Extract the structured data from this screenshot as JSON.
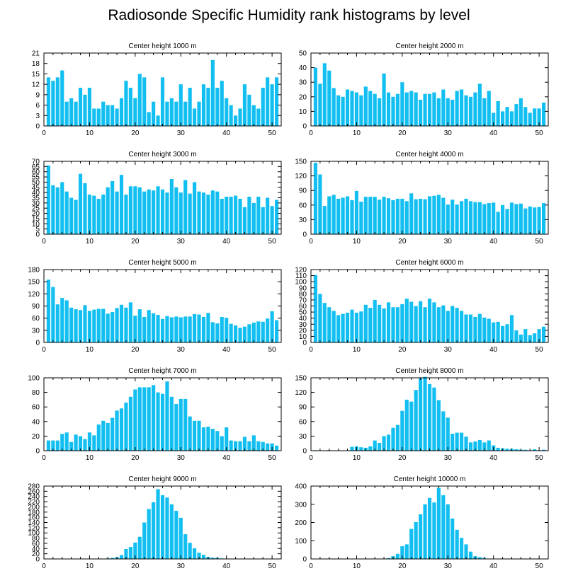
{
  "title": "Radiosonde Specific Humidity rank histograms by level",
  "chart_data": [
    {
      "type": "bar",
      "title": "Center height 1000 m",
      "xlim": [
        0,
        52
      ],
      "ylim": [
        0,
        21
      ],
      "xticks": [
        0,
        10,
        20,
        30,
        40,
        50
      ],
      "yticks": [
        0,
        3,
        6,
        9,
        12,
        15,
        18,
        21
      ],
      "x": [
        1,
        2,
        3,
        4,
        5,
        6,
        7,
        8,
        9,
        10,
        11,
        12,
        13,
        14,
        15,
        16,
        17,
        18,
        19,
        20,
        21,
        22,
        23,
        24,
        25,
        26,
        27,
        28,
        29,
        30,
        31,
        32,
        33,
        34,
        35,
        36,
        37,
        38,
        39,
        40,
        41,
        42,
        43,
        44,
        45,
        46,
        47,
        48,
        49,
        50,
        51
      ],
      "values": [
        14,
        13,
        14,
        16,
        7,
        8,
        7,
        11,
        9,
        11,
        5,
        5,
        7,
        6,
        6,
        5,
        8,
        13,
        11,
        8,
        15,
        14,
        4,
        7,
        3,
        14,
        7,
        8,
        7,
        12,
        7,
        11,
        5,
        7,
        12,
        11,
        19,
        11,
        13,
        8,
        6,
        3,
        5,
        12,
        9,
        6,
        5,
        11,
        14,
        12,
        14
      ]
    },
    {
      "type": "bar",
      "title": "Center height 2000 m",
      "xlim": [
        0,
        52
      ],
      "ylim": [
        0,
        50
      ],
      "xticks": [
        0,
        10,
        20,
        30,
        40,
        50
      ],
      "yticks": [
        0,
        10,
        20,
        30,
        40,
        50
      ],
      "x": [
        1,
        2,
        3,
        4,
        5,
        6,
        7,
        8,
        9,
        10,
        11,
        12,
        13,
        14,
        15,
        16,
        17,
        18,
        19,
        20,
        21,
        22,
        23,
        24,
        25,
        26,
        27,
        28,
        29,
        30,
        31,
        32,
        33,
        34,
        35,
        36,
        37,
        38,
        39,
        40,
        41,
        42,
        43,
        44,
        45,
        46,
        47,
        48,
        49,
        50,
        51
      ],
      "values": [
        40,
        29,
        43,
        38,
        26,
        21,
        20,
        25,
        24,
        23,
        21,
        27,
        24,
        22,
        19,
        36,
        23,
        20,
        22,
        30,
        23,
        24,
        23,
        18,
        22,
        22,
        23,
        19,
        25,
        19,
        18,
        24,
        25,
        21,
        20,
        23,
        29,
        19,
        24,
        9,
        17,
        10,
        13,
        10,
        15,
        19,
        13,
        9,
        12,
        12,
        16
      ]
    },
    {
      "type": "bar",
      "title": "Center height 3000 m",
      "xlim": [
        0,
        52
      ],
      "ylim": [
        0,
        70
      ],
      "xticks": [
        0,
        10,
        20,
        30,
        40,
        50
      ],
      "yticks": [
        0,
        5,
        10,
        15,
        20,
        25,
        30,
        35,
        40,
        45,
        50,
        55,
        60,
        65,
        70
      ],
      "x": [
        1,
        2,
        3,
        4,
        5,
        6,
        7,
        8,
        9,
        10,
        11,
        12,
        13,
        14,
        15,
        16,
        17,
        18,
        19,
        20,
        21,
        22,
        23,
        24,
        25,
        26,
        27,
        28,
        29,
        30,
        31,
        32,
        33,
        34,
        35,
        36,
        37,
        38,
        39,
        40,
        41,
        42,
        43,
        44,
        45,
        46,
        47,
        48,
        49,
        50,
        51
      ],
      "values": [
        66,
        47,
        45,
        50,
        41,
        35,
        33,
        58,
        49,
        38,
        37,
        34,
        38,
        45,
        51,
        41,
        57,
        38,
        46,
        46,
        45,
        41,
        43,
        42,
        46,
        43,
        40,
        53,
        45,
        40,
        52,
        39,
        50,
        41,
        40,
        38,
        42,
        41,
        34,
        36,
        36,
        37,
        34,
        26,
        36,
        30,
        36,
        26,
        35,
        27,
        33
      ]
    },
    {
      "type": "bar",
      "title": "Center height 4000 m",
      "xlim": [
        0,
        52
      ],
      "ylim": [
        0,
        150
      ],
      "xticks": [
        0,
        10,
        20,
        30,
        40,
        50
      ],
      "yticks": [
        0,
        30,
        60,
        90,
        120,
        150
      ],
      "x": [
        1,
        2,
        3,
        4,
        5,
        6,
        7,
        8,
        9,
        10,
        11,
        12,
        13,
        14,
        15,
        16,
        17,
        18,
        19,
        20,
        21,
        22,
        23,
        24,
        25,
        26,
        27,
        28,
        29,
        30,
        31,
        32,
        33,
        34,
        35,
        36,
        37,
        38,
        39,
        40,
        41,
        42,
        43,
        44,
        45,
        46,
        47,
        48,
        49,
        50,
        51
      ],
      "values": [
        147,
        123,
        58,
        78,
        81,
        73,
        75,
        78,
        70,
        89,
        67,
        77,
        77,
        77,
        71,
        77,
        74,
        70,
        73,
        73,
        68,
        84,
        72,
        73,
        72,
        78,
        79,
        81,
        75,
        61,
        71,
        61,
        68,
        73,
        68,
        66,
        66,
        62,
        64,
        65,
        46,
        60,
        52,
        65,
        62,
        63,
        53,
        57,
        55,
        56,
        64
      ]
    },
    {
      "type": "bar",
      "title": "Center height 5000 m",
      "xlim": [
        0,
        52
      ],
      "ylim": [
        0,
        180
      ],
      "xticks": [
        0,
        10,
        20,
        30,
        40,
        50
      ],
      "yticks": [
        0,
        30,
        60,
        90,
        120,
        150,
        180
      ],
      "x": [
        1,
        2,
        3,
        4,
        5,
        6,
        7,
        8,
        9,
        10,
        11,
        12,
        13,
        14,
        15,
        16,
        17,
        18,
        19,
        20,
        21,
        22,
        23,
        24,
        25,
        26,
        27,
        28,
        29,
        30,
        31,
        32,
        33,
        34,
        35,
        36,
        37,
        38,
        39,
        40,
        41,
        42,
        43,
        44,
        45,
        46,
        47,
        48,
        49,
        50,
        51
      ],
      "values": [
        155,
        137,
        94,
        110,
        104,
        86,
        82,
        80,
        92,
        78,
        81,
        83,
        83,
        71,
        75,
        85,
        93,
        86,
        99,
        66,
        82,
        63,
        80,
        72,
        68,
        58,
        65,
        62,
        64,
        62,
        64,
        64,
        70,
        69,
        63,
        73,
        50,
        47,
        63,
        61,
        46,
        42,
        36,
        39,
        45,
        49,
        52,
        51,
        59,
        77,
        55
      ]
    },
    {
      "type": "bar",
      "title": "Center height 6000 m",
      "xlim": [
        0,
        52
      ],
      "ylim": [
        0,
        120
      ],
      "xticks": [
        0,
        10,
        20,
        30,
        40,
        50
      ],
      "yticks": [
        0,
        10,
        20,
        30,
        40,
        50,
        60,
        70,
        80,
        90,
        100,
        110,
        120
      ],
      "x": [
        1,
        2,
        3,
        4,
        5,
        6,
        7,
        8,
        9,
        10,
        11,
        12,
        13,
        14,
        15,
        16,
        17,
        18,
        19,
        20,
        21,
        22,
        23,
        24,
        25,
        26,
        27,
        28,
        29,
        30,
        31,
        32,
        33,
        34,
        35,
        36,
        37,
        38,
        39,
        40,
        41,
        42,
        43,
        44,
        45,
        46,
        47,
        48,
        49,
        50,
        51
      ],
      "values": [
        111,
        80,
        65,
        58,
        52,
        45,
        47,
        49,
        54,
        49,
        51,
        62,
        57,
        70,
        62,
        56,
        66,
        58,
        58,
        63,
        72,
        67,
        60,
        68,
        58,
        72,
        66,
        58,
        61,
        52,
        60,
        57,
        52,
        46,
        46,
        42,
        47,
        41,
        39,
        33,
        34,
        27,
        30,
        45,
        20,
        13,
        22,
        12,
        15,
        22,
        26
      ]
    },
    {
      "type": "bar",
      "title": "Center height 7000 m",
      "xlim": [
        0,
        52
      ],
      "ylim": [
        0,
        100
      ],
      "xticks": [
        0,
        10,
        20,
        30,
        40,
        50
      ],
      "yticks": [
        0,
        20,
        40,
        60,
        80,
        100
      ],
      "x": [
        1,
        2,
        3,
        4,
        5,
        6,
        7,
        8,
        9,
        10,
        11,
        12,
        13,
        14,
        15,
        16,
        17,
        18,
        19,
        20,
        21,
        22,
        23,
        24,
        25,
        26,
        27,
        28,
        29,
        30,
        31,
        32,
        33,
        34,
        35,
        36,
        37,
        38,
        39,
        40,
        41,
        42,
        43,
        44,
        45,
        46,
        47,
        48,
        49,
        50,
        51
      ],
      "values": [
        14,
        14,
        14,
        23,
        25,
        12,
        22,
        20,
        16,
        25,
        21,
        36,
        41,
        38,
        45,
        55,
        58,
        66,
        74,
        84,
        87,
        87,
        87,
        90,
        80,
        78,
        95,
        74,
        64,
        71,
        71,
        47,
        41,
        41,
        32,
        33,
        30,
        27,
        20,
        32,
        14,
        13,
        13,
        19,
        13,
        21,
        13,
        12,
        10,
        10,
        7
      ]
    },
    {
      "type": "bar",
      "title": "Center height 8000 m",
      "xlim": [
        0,
        52
      ],
      "ylim": [
        0,
        150
      ],
      "xticks": [
        0,
        10,
        20,
        30,
        40,
        50
      ],
      "yticks": [
        0,
        30,
        60,
        90,
        120,
        150
      ],
      "x": [
        1,
        2,
        3,
        4,
        5,
        6,
        7,
        8,
        9,
        10,
        11,
        12,
        13,
        14,
        15,
        16,
        17,
        18,
        19,
        20,
        21,
        22,
        23,
        24,
        25,
        26,
        27,
        28,
        29,
        30,
        31,
        32,
        33,
        34,
        35,
        36,
        37,
        38,
        39,
        40,
        41,
        42,
        43,
        44,
        45,
        46,
        47,
        48,
        49,
        50,
        51
      ],
      "values": [
        1,
        0,
        0,
        1,
        0,
        0,
        0,
        0,
        8,
        9,
        7,
        6,
        9,
        21,
        16,
        30,
        33,
        47,
        53,
        82,
        105,
        101,
        125,
        149,
        152,
        137,
        130,
        104,
        81,
        68,
        35,
        37,
        37,
        29,
        17,
        19,
        22,
        17,
        21,
        11,
        6,
        5,
        4,
        4,
        3,
        2,
        2,
        1,
        3,
        1,
        2
      ]
    },
    {
      "type": "bar",
      "title": "Center height 9000 m",
      "xlim": [
        0,
        52
      ],
      "ylim": [
        0,
        280
      ],
      "xticks": [
        0,
        10,
        20,
        30,
        40,
        50
      ],
      "yticks": [
        0,
        20,
        40,
        60,
        80,
        100,
        120,
        140,
        160,
        180,
        200,
        220,
        240,
        260,
        280
      ],
      "x": [
        1,
        2,
        3,
        4,
        5,
        6,
        7,
        8,
        9,
        10,
        11,
        12,
        13,
        14,
        15,
        16,
        17,
        18,
        19,
        20,
        21,
        22,
        23,
        24,
        25,
        26,
        27,
        28,
        29,
        30,
        31,
        32,
        33,
        34,
        35,
        36,
        37,
        38,
        39,
        40,
        41,
        42,
        43,
        44,
        45,
        46,
        47,
        48,
        49,
        50,
        51
      ],
      "values": [
        0,
        0,
        0,
        0,
        0,
        0,
        0,
        0,
        0,
        0,
        0,
        0,
        1,
        2,
        4,
        7,
        15,
        38,
        46,
        63,
        85,
        140,
        192,
        218,
        268,
        245,
        236,
        210,
        185,
        158,
        95,
        62,
        41,
        24,
        16,
        8,
        5,
        4,
        2,
        1,
        1,
        0,
        0,
        0,
        0,
        0,
        0,
        0,
        0,
        0,
        0
      ]
    },
    {
      "type": "bar",
      "title": "Center height 10000 m",
      "xlim": [
        0,
        52
      ],
      "ylim": [
        0,
        400
      ],
      "xticks": [
        0,
        10,
        20,
        30,
        40,
        50
      ],
      "yticks": [
        0,
        100,
        200,
        300,
        400
      ],
      "x": [
        1,
        2,
        3,
        4,
        5,
        6,
        7,
        8,
        9,
        10,
        11,
        12,
        13,
        14,
        15,
        16,
        17,
        18,
        19,
        20,
        21,
        22,
        23,
        24,
        25,
        26,
        27,
        28,
        29,
        30,
        31,
        32,
        33,
        34,
        35,
        36,
        37,
        38,
        39,
        40,
        41,
        42,
        43,
        44,
        45,
        46,
        47,
        48,
        49,
        50,
        51
      ],
      "values": [
        0,
        0,
        0,
        0,
        0,
        0,
        0,
        0,
        0,
        0,
        0,
        0,
        0,
        0,
        0,
        0,
        5,
        15,
        28,
        70,
        80,
        165,
        202,
        245,
        300,
        335,
        310,
        390,
        350,
        300,
        222,
        160,
        116,
        80,
        40,
        15,
        10,
        5,
        2,
        1,
        0,
        0,
        0,
        0,
        0,
        0,
        0,
        0,
        0,
        0,
        0
      ]
    }
  ]
}
